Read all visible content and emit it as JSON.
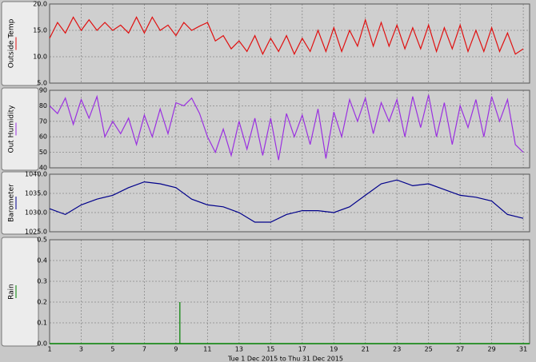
{
  "chart_data": [
    {
      "type": "line",
      "ylabel": "Outside Temp",
      "color": "#e01010",
      "grid": true,
      "xlim": [
        1,
        31.4
      ],
      "xticks": [
        1,
        3,
        5,
        7,
        9,
        11,
        13,
        15,
        17,
        19,
        21,
        23,
        25,
        27,
        29,
        31
      ],
      "ylim": [
        5,
        20
      ],
      "yticks": [
        {
          "value": 5,
          "label": "5.0"
        },
        {
          "value": 10,
          "label": "10.0"
        },
        {
          "value": 15,
          "label": "15.0"
        },
        {
          "value": 20,
          "label": "20.0"
        }
      ],
      "x": [
        1,
        1.5,
        2,
        2.5,
        3,
        3.5,
        4,
        4.5,
        5,
        5.5,
        6,
        6.5,
        7,
        7.5,
        8,
        8.5,
        9,
        9.5,
        10,
        10.5,
        11,
        11.5,
        12,
        12.5,
        13,
        13.5,
        14,
        14.5,
        15,
        15.5,
        16,
        16.5,
        17,
        17.5,
        18,
        18.5,
        19,
        19.5,
        20,
        20.5,
        21,
        21.5,
        22,
        22.5,
        23,
        23.5,
        24,
        24.5,
        25,
        25.5,
        26,
        26.5,
        27,
        27.5,
        28,
        28.5,
        29,
        29.5,
        30,
        30.5,
        31
      ],
      "values": [
        13.5,
        16.5,
        14.5,
        17.5,
        15,
        17,
        15,
        16.5,
        15,
        16,
        14.5,
        17.5,
        14.5,
        17.5,
        15,
        16,
        14,
        16.5,
        15,
        15.8,
        16.5,
        13,
        14,
        11.5,
        13,
        11,
        14,
        10.5,
        13.5,
        11,
        14,
        10.5,
        13.5,
        11,
        15,
        11,
        15.5,
        11,
        15,
        12,
        17,
        12,
        16.5,
        12,
        16,
        11.5,
        15.5,
        11.5,
        16,
        11,
        15.5,
        11.5,
        16,
        11,
        15,
        11,
        15.5,
        11,
        14.5,
        10.5,
        11.5
      ]
    },
    {
      "type": "line",
      "ylabel": "Out Humidity",
      "color": "#9a30e0",
      "grid": true,
      "xlim": [
        1,
        31.4
      ],
      "xticks": [
        1,
        3,
        5,
        7,
        9,
        11,
        13,
        15,
        17,
        19,
        21,
        23,
        25,
        27,
        29,
        31
      ],
      "ylim": [
        40,
        90
      ],
      "yticks": [
        40,
        50,
        60,
        70,
        80,
        90
      ],
      "x": [
        1,
        1.5,
        2,
        2.5,
        3,
        3.5,
        4,
        4.5,
        5,
        5.5,
        6,
        6.5,
        7,
        7.5,
        8,
        8.5,
        9,
        9.5,
        10,
        10.5,
        11,
        11.5,
        12,
        12.5,
        13,
        13.5,
        14,
        14.5,
        15,
        15.5,
        16,
        16.5,
        17,
        17.5,
        18,
        18.5,
        19,
        19.5,
        20,
        20.5,
        21,
        21.5,
        22,
        22.5,
        23,
        23.5,
        24,
        24.5,
        25,
        25.5,
        26,
        26.5,
        27,
        27.5,
        28,
        28.5,
        29,
        29.5,
        30,
        30.5,
        31
      ],
      "values": [
        80,
        75,
        85,
        68,
        84,
        72,
        86,
        60,
        70,
        62,
        72,
        55,
        74,
        60,
        78,
        62,
        82,
        80,
        85,
        75,
        60,
        50,
        65,
        48,
        70,
        52,
        72,
        48,
        72,
        45,
        75,
        60,
        74,
        55,
        78,
        46,
        76,
        60,
        84,
        70,
        85,
        62,
        82,
        70,
        84,
        60,
        86,
        66,
        87,
        60,
        82,
        55,
        80,
        66,
        84,
        60,
        86,
        70,
        84,
        55,
        50
      ]
    },
    {
      "type": "line",
      "ylabel": "Barometer",
      "color": "#00008b",
      "grid": true,
      "xlim": [
        1,
        31.4
      ],
      "xticks": [
        1,
        3,
        5,
        7,
        9,
        11,
        13,
        15,
        17,
        19,
        21,
        23,
        25,
        27,
        29,
        31
      ],
      "ylim": [
        1025,
        1040
      ],
      "yticks": [
        {
          "value": 1025,
          "label": "1025.0"
        },
        {
          "value": 1030,
          "label": "1030.0"
        },
        {
          "value": 1035,
          "label": "1035.0"
        },
        {
          "value": 1040,
          "label": "1040.0"
        }
      ],
      "x": [
        1,
        2,
        3,
        4,
        5,
        6,
        7,
        8,
        9,
        10,
        11,
        12,
        13,
        14,
        15,
        16,
        17,
        18,
        19,
        20,
        21,
        22,
        23,
        24,
        25,
        26,
        27,
        28,
        29,
        30,
        31
      ],
      "values": [
        1031,
        1029.5,
        1032,
        1033.5,
        1034.5,
        1036.5,
        1038,
        1037.5,
        1036.5,
        1033.5,
        1032,
        1031.5,
        1030,
        1027.5,
        1027.5,
        1029.5,
        1030.5,
        1030.5,
        1030,
        1031.5,
        1034.5,
        1037.5,
        1038.5,
        1037,
        1037.5,
        1036,
        1034.5,
        1034,
        1033,
        1029.5,
        1028.5
      ]
    },
    {
      "type": "bar",
      "ylabel": "Rain",
      "color": "#008000",
      "grid": true,
      "xlim": [
        1,
        31.4
      ],
      "xticks": [
        1,
        3,
        5,
        7,
        9,
        11,
        13,
        15,
        17,
        19,
        21,
        23,
        25,
        27,
        29,
        31
      ],
      "ylim": [
        0,
        0.5
      ],
      "yticks": [
        {
          "value": 0,
          "label": "0.0"
        },
        0.1,
        0.2,
        0.3,
        0.4,
        0.5
      ],
      "x": [
        9.25
      ],
      "values": [
        0.2
      ],
      "xlabel": "Tue 1 Dec 2015  to  Thu 31 Dec 2015"
    }
  ]
}
